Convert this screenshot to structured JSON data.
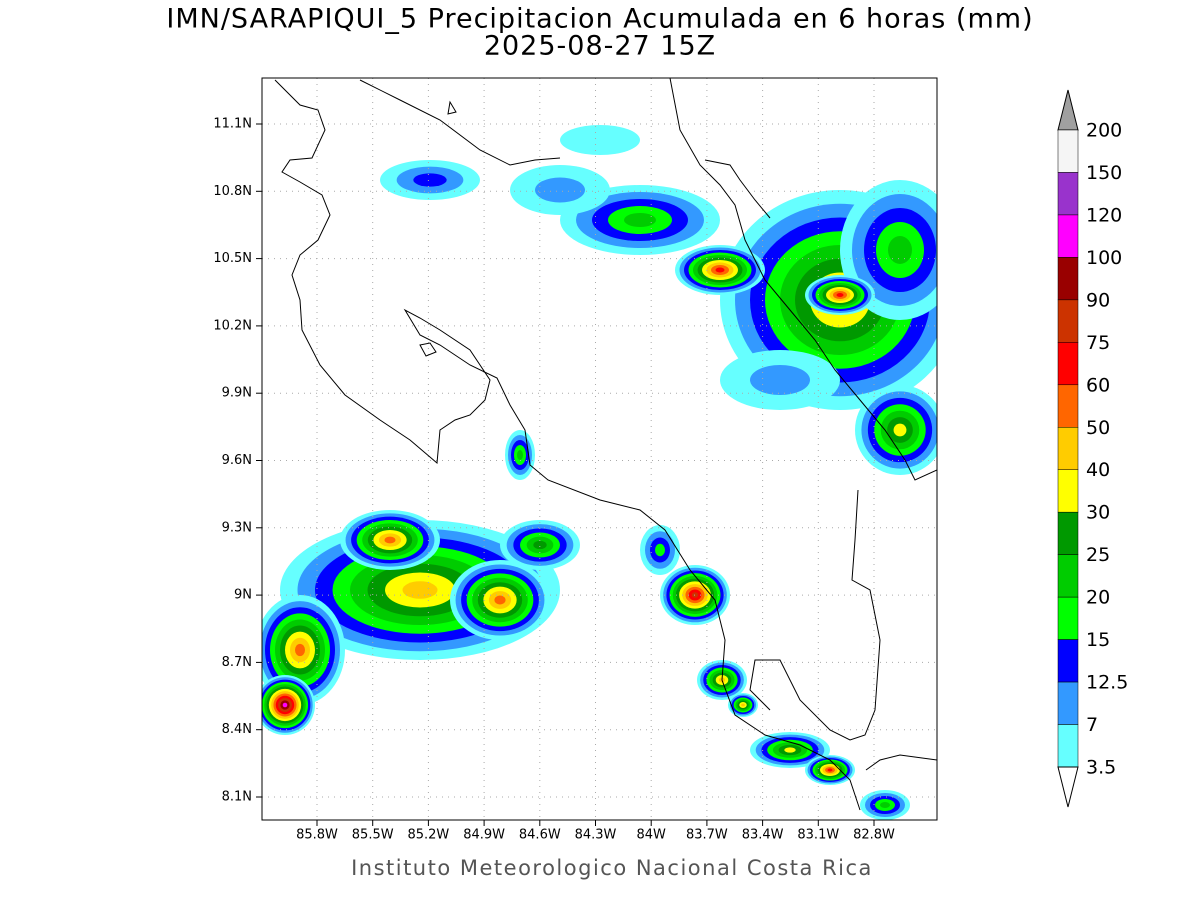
{
  "title": "IMN/SARAPIQUI_5 Precipitacion Acumulada en 6 horas (mm)",
  "subtitle": "2025-08-27 15Z",
  "map": {
    "lat_labels": [
      "8.1N",
      "8.4N",
      "8.7N",
      "9N",
      "9.3N",
      "9.6N",
      "9.9N",
      "10.2N",
      "10.5N",
      "10.8N",
      "11.1N"
    ],
    "lon_labels": [
      "85.8W",
      "85.5W",
      "85.2W",
      "84.9W",
      "84.6W",
      "84.3W",
      "84W",
      "83.7W",
      "83.4W",
      "83.1W",
      "82.8W"
    ]
  },
  "colorbar": {
    "labels": [
      "200",
      "150",
      "120",
      "100",
      "90",
      "75",
      "60",
      "50",
      "40",
      "30",
      "25",
      "20",
      "15",
      "12.5",
      "7",
      "3.5"
    ],
    "colors": [
      "#a0a0a0",
      "#f5f5f5",
      "#9933cc",
      "#ff00ff",
      "#990000",
      "#cc3300",
      "#ff0000",
      "#ff6600",
      "#ffcc00",
      "#ffff00",
      "#009900",
      "#00cc00",
      "#00ff00",
      "#0000ff",
      "#3399ff",
      "#66ffff",
      "#ffffff"
    ]
  },
  "footer": "Instituto Meteorologico Nacional Costa Rica"
}
